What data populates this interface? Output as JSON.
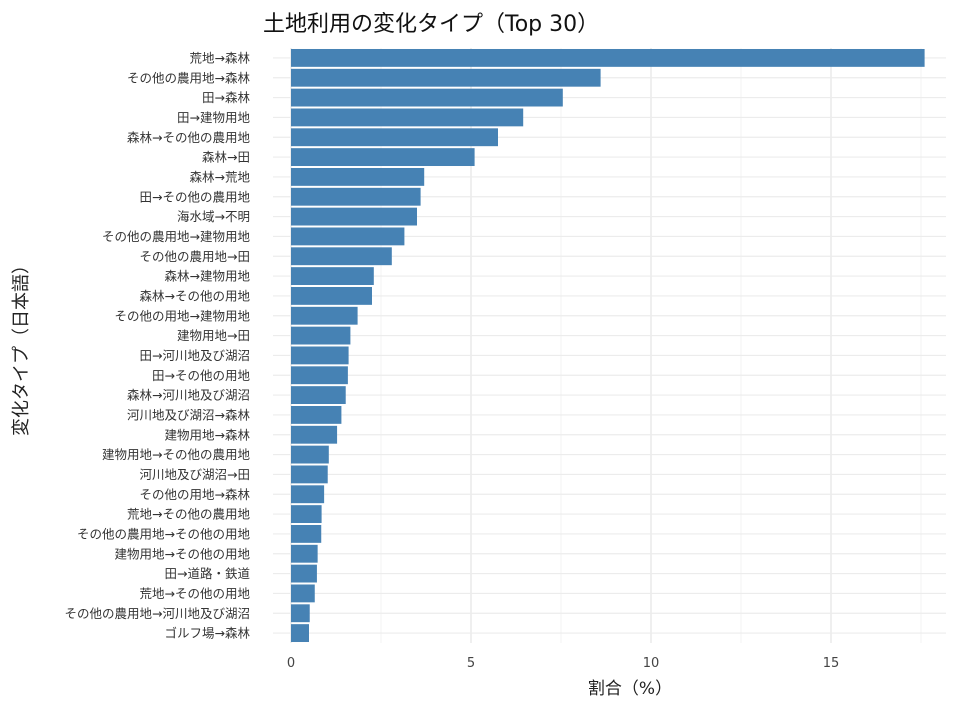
{
  "chart_data": {
    "type": "bar",
    "orientation": "horizontal",
    "title": "土地利用の変化タイプ（Top 30）",
    "xlabel": "割合（%）",
    "ylabel": "変化タイプ（日本語）",
    "xlim": [
      0,
      18.5
    ],
    "xticks": [
      0,
      5,
      10,
      15
    ],
    "grid": true,
    "bar_color": "#4682B4",
    "categories": [
      "荒地→森林",
      "その他の農用地→森林",
      "田→森林",
      "田→建物用地",
      "森林→その他の農用地",
      "森林→田",
      "森林→荒地",
      "田→その他の農用地",
      "海水域→不明",
      "その他の農用地→建物用地",
      "その他の農用地→田",
      "森林→建物用地",
      "森林→その他の用地",
      "その他の用地→建物用地",
      "建物用地→田",
      "田→河川地及び湖沼",
      "田→その他の用地",
      "森林→河川地及び湖沼",
      "河川地及び湖沼→森林",
      "建物用地→森林",
      "建物用地→その他の農用地",
      "河川地及び湖沼→田",
      "その他の用地→森林",
      "荒地→その他の農用地",
      "その他の農用地→その他の用地",
      "建物用地→その他の用地",
      "田→道路・鉄道",
      "荒地→その他の用地",
      "その他の農用地→河川地及び湖沼",
      "ゴルフ場→森林"
    ],
    "values": [
      17.6,
      8.6,
      7.55,
      6.45,
      5.75,
      5.1,
      3.7,
      3.6,
      3.5,
      3.15,
      2.8,
      2.3,
      2.25,
      1.85,
      1.65,
      1.6,
      1.58,
      1.52,
      1.4,
      1.28,
      1.05,
      1.02,
      0.92,
      0.85,
      0.84,
      0.74,
      0.72,
      0.66,
      0.52,
      0.5
    ]
  }
}
